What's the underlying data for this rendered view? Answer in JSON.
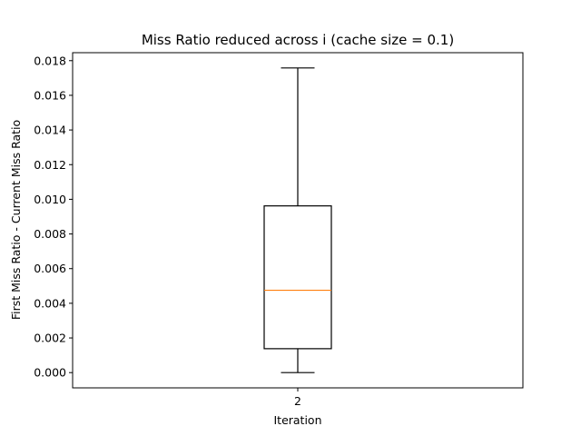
{
  "chart_data": {
    "type": "box",
    "title": "Miss Ratio reduced across i (cache size = 0.1)",
    "xlabel": "Iteration",
    "ylabel": "First Miss Ratio - Current Miss Ratio",
    "categories": [
      "2"
    ],
    "boxes": [
      {
        "category": "2",
        "whisker_low": 0.0,
        "q1": 0.00138,
        "median": 0.00475,
        "q3": 0.00962,
        "whisker_high": 0.01758
      }
    ],
    "ylim": [
      -0.00088,
      0.01846
    ],
    "yticks": [
      0.0,
      0.002,
      0.004,
      0.006,
      0.008,
      0.01,
      0.012,
      0.014,
      0.016,
      0.018
    ],
    "ytick_labels": [
      "0.000",
      "0.002",
      "0.004",
      "0.006",
      "0.008",
      "0.010",
      "0.012",
      "0.014",
      "0.016",
      "0.018"
    ],
    "grid": false,
    "colors": {
      "box": "#000000",
      "median": "#ff7f0e",
      "whisker": "#000000"
    }
  }
}
